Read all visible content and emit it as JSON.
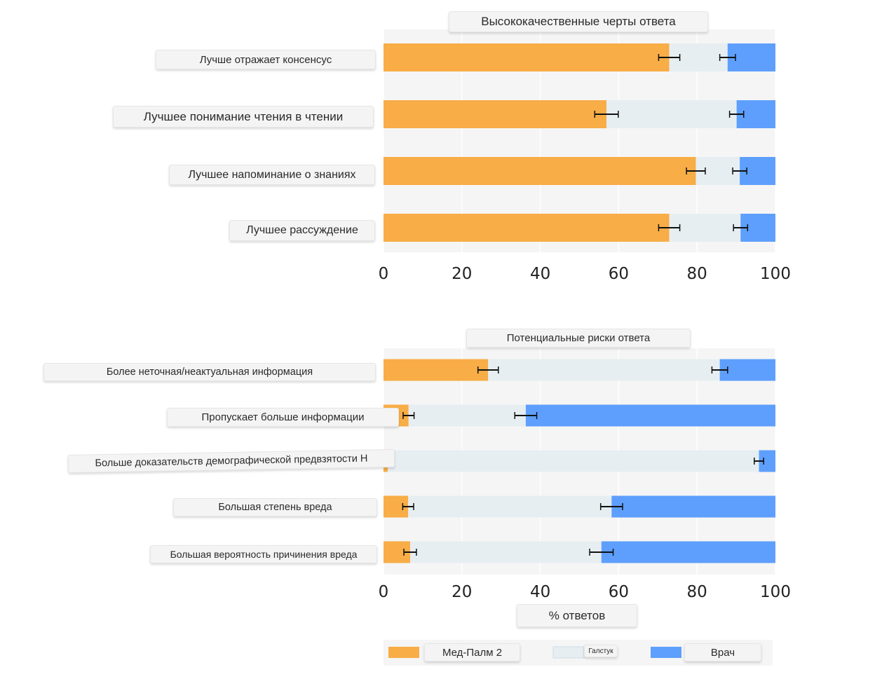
{
  "colors": {
    "medpalm": "#f8ad47",
    "tie": "#e7eef1",
    "physician": "#5e9ffd",
    "panel_bg": "#f5f5f5",
    "grid": "#ffffff",
    "error_bar": "#111111"
  },
  "chart_data": [
    {
      "type": "bar",
      "stacked": true,
      "orientation": "horizontal",
      "title": "Высококачественные черты ответа",
      "categories": [
        "Лучше отражает консенсус",
        "Лучшее понимание чтения в чтении",
        "Лучшее напоминание о знаниях",
        "Лучшее рассуждение"
      ],
      "series": [
        {
          "name": "Мед-Палм 2",
          "values": [
            72.9,
            56.9,
            79.7,
            72.9
          ]
        },
        {
          "name": "Галстук",
          "values": [
            14.9,
            33.2,
            11.2,
            18.2
          ]
        },
        {
          "name": "Врач",
          "values": [
            12.2,
            9.9,
            9.1,
            8.9
          ]
        }
      ],
      "error_bars": [
        {
          "at": [
            72.9,
            87.8
          ],
          "half_width": [
            2.7,
            2.0
          ]
        },
        {
          "at": [
            56.9,
            90.1
          ],
          "half_width": [
            3.0,
            1.8
          ]
        },
        {
          "at": [
            79.7,
            90.9
          ],
          "half_width": [
            2.4,
            1.8
          ]
        },
        {
          "at": [
            72.9,
            91.1
          ],
          "half_width": [
            2.7,
            1.8
          ]
        }
      ],
      "xlim": [
        0,
        100
      ],
      "xticks": [
        "0",
        "20",
        "40",
        "60",
        "80",
        "100"
      ],
      "grid": true
    },
    {
      "type": "bar",
      "stacked": true,
      "orientation": "horizontal",
      "title": "Потенциальные риски ответа",
      "xlabel": "% ответов",
      "categories": [
        "Более неточная/неактуальная информация",
        "Пропускает больше информации",
        "Больше доказательств демографической предвзятости Н",
        "Большая степень вреда",
        "Большая вероятность причинения вреда"
      ],
      "series": [
        {
          "name": "Мед-Палм 2",
          "values": [
            26.7,
            6.4,
            1.1,
            6.3,
            6.8
          ]
        },
        {
          "name": "Галстук",
          "values": [
            59.1,
            29.9,
            94.7,
            51.9,
            48.8
          ]
        },
        {
          "name": "Врач",
          "values": [
            14.2,
            63.7,
            4.2,
            41.8,
            44.4
          ]
        }
      ],
      "error_bars": [
        {
          "at": [
            26.7,
            85.8
          ],
          "half_width": [
            2.6,
            2.0
          ]
        },
        {
          "at": [
            6.4,
            36.3
          ],
          "half_width": [
            1.4,
            2.8
          ]
        },
        {
          "at": [
            null,
            95.8
          ],
          "half_width": [
            0,
            1.2
          ]
        },
        {
          "at": [
            6.3,
            58.2
          ],
          "half_width": [
            1.4,
            2.8
          ]
        },
        {
          "at": [
            6.8,
            55.6
          ],
          "half_width": [
            1.6,
            3.0
          ]
        }
      ],
      "xlim": [
        0,
        100
      ],
      "xticks": [
        "0",
        "20",
        "40",
        "60",
        "80",
        "100"
      ],
      "grid": true
    }
  ],
  "legend": {
    "items": [
      {
        "label": "Мед-Палм 2",
        "color": "#f8ad47"
      },
      {
        "label": "Галстук",
        "color": "#e7eef1"
      },
      {
        "label": "Врач",
        "color": "#5e9ffd"
      }
    ]
  }
}
